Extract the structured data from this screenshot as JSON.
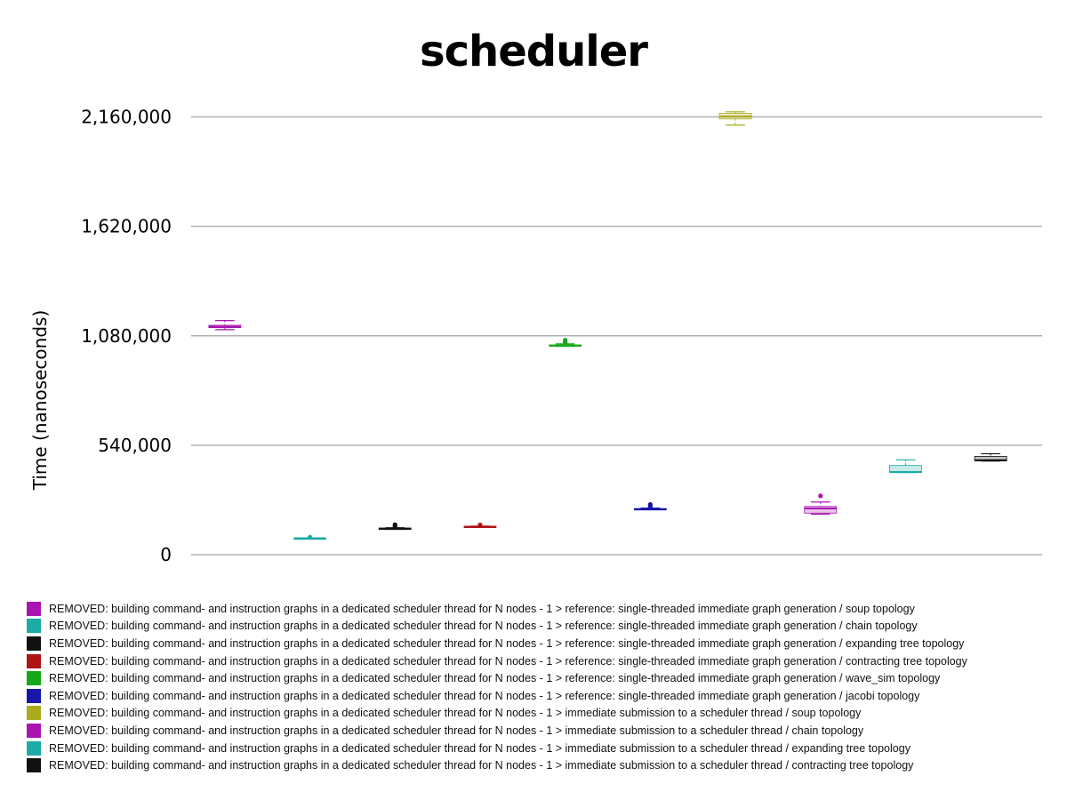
{
  "chart_data": {
    "type": "box",
    "title": "scheduler",
    "ylabel": "Time (nanoseconds)",
    "ylim": [
      0,
      2160000
    ],
    "yticks": [
      0,
      540000,
      1080000,
      1620000,
      2160000
    ],
    "ytick_labels": [
      "0",
      "540,000",
      "1,080,000",
      "1,620,000",
      "2,160,000"
    ],
    "grid": true,
    "legend_position": "bottom",
    "series": [
      {
        "name": "REMOVED: building command- and instruction graphs in a dedicated scheduler thread for N nodes - 1 > reference: single-threaded immediate graph generation / soup topology",
        "color": "#a915b0",
        "min": 1110000,
        "q1": 1120000,
        "median": 1125000,
        "q3": 1132000,
        "max": 1155000,
        "outliers": []
      },
      {
        "name": "REMOVED: building command- and instruction graphs in a dedicated scheduler thread for N nodes - 1 > reference: single-threaded immediate graph generation / chain topology",
        "color": "#1aaca5",
        "min": 80000,
        "q1": 80000,
        "median": 81000,
        "q3": 82000,
        "max": 82000,
        "outliers": [
          86000
        ]
      },
      {
        "name": "REMOVED: building command- and instruction graphs in a dedicated scheduler thread for N nodes - 1 > reference: single-threaded immediate graph generation / expanding tree topology",
        "color": "#111111",
        "min": 125000,
        "q1": 127000,
        "median": 129000,
        "q3": 131000,
        "max": 133000,
        "outliers": [
          140000,
          148000
        ]
      },
      {
        "name": "REMOVED: building command- and instruction graphs in a dedicated scheduler thread for N nodes - 1 > reference: single-threaded immediate graph generation / contracting tree topology",
        "color": "#ad1515",
        "min": 135000,
        "q1": 136000,
        "median": 138000,
        "q3": 140000,
        "max": 141000,
        "outliers": [
          147000
        ]
      },
      {
        "name": "REMOVED: building command- and instruction graphs in a dedicated scheduler thread for N nodes - 1 > reference: single-threaded immediate graph generation / wave_sim topology",
        "color": "#17a81a",
        "min": 1028000,
        "q1": 1030000,
        "median": 1032000,
        "q3": 1035000,
        "max": 1040000,
        "outliers": [
          1045000,
          1050000,
          1058000
        ]
      },
      {
        "name": "REMOVED: building command- and instruction graphs in a dedicated scheduler thread for N nodes - 1 > reference: single-threaded immediate graph generation / jacobi topology",
        "color": "#1716a8",
        "min": 222000,
        "q1": 223000,
        "median": 225000,
        "q3": 227000,
        "max": 230000,
        "outliers": [
          236000,
          242000,
          248000
        ]
      },
      {
        "name": "REMOVED: building command- and instruction graphs in a dedicated scheduler thread for N nodes - 1 > immediate submission to a scheduler thread / soup topology",
        "color": "#aaac1b",
        "min": 2120000,
        "q1": 2150000,
        "median": 2162000,
        "q3": 2178000,
        "max": 2185000,
        "outliers": []
      },
      {
        "name": "REMOVED: building command- and instruction graphs in a dedicated scheduler thread for N nodes - 1 > immediate submission to a scheduler thread / chain topology",
        "color": "#a915b0",
        "min": 200000,
        "q1": 205000,
        "median": 228000,
        "q3": 238000,
        "max": 260000,
        "outliers": [
          290000
        ]
      },
      {
        "name": "REMOVED: building command- and instruction graphs in a dedicated scheduler thread for N nodes - 1 > immediate submission to a scheduler thread / expanding tree topology",
        "color": "#1aaca5",
        "min": 405000,
        "q1": 405000,
        "median": 408000,
        "q3": 440000,
        "max": 468000,
        "outliers": []
      },
      {
        "name": "REMOVED: building command- and instruction graphs in a dedicated scheduler thread for N nodes - 1 > immediate submission to a scheduler thread / contracting tree topology",
        "color": "#111111",
        "min": 462000,
        "q1": 463000,
        "median": 466000,
        "q3": 485000,
        "max": 498000,
        "outliers": []
      }
    ]
  }
}
